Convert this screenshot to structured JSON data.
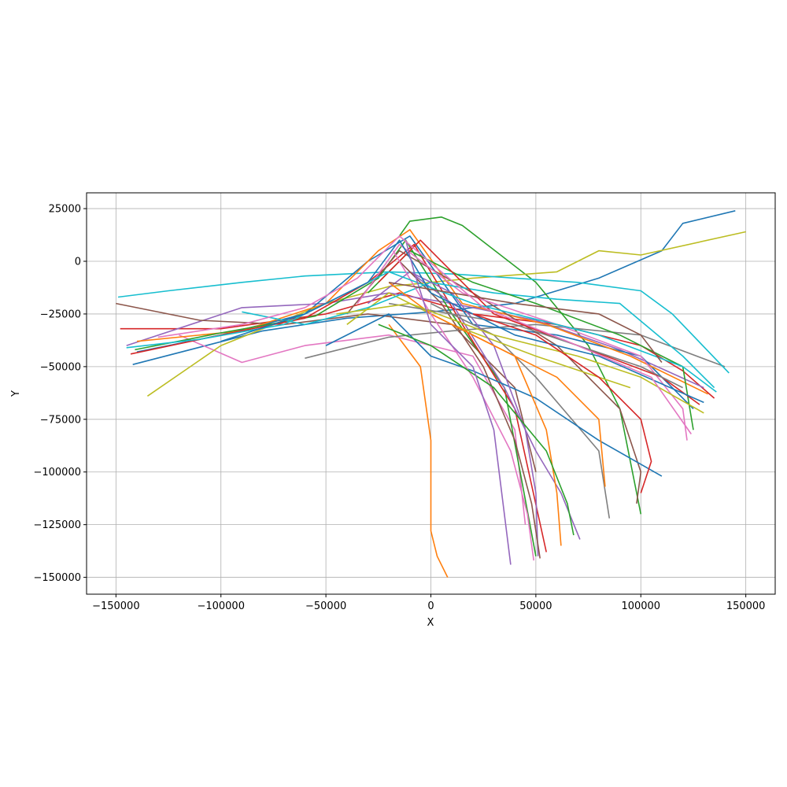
{
  "chart_data": {
    "type": "line",
    "title": "",
    "xlabel": "X",
    "ylabel": "Y",
    "xlim": [
      -164000,
      164000
    ],
    "ylim": [
      -158000,
      32500
    ],
    "grid": true,
    "legend": "none",
    "x_ticks": [
      -150000,
      -100000,
      -50000,
      0,
      50000,
      100000,
      150000
    ],
    "x_tick_labels": [
      "−150000",
      "−100000",
      "−50000",
      "0",
      "50000",
      "100000",
      "150000"
    ],
    "y_ticks": [
      25000,
      0,
      -25000,
      -50000,
      -75000,
      -100000,
      -125000,
      -150000
    ],
    "y_tick_labels": [
      "25000",
      "0",
      "−25000",
      "−50000",
      "−75000",
      "−100000",
      "−125000",
      "−150000"
    ],
    "colors": [
      "#1f77b4",
      "#ff7f0e",
      "#2ca02c",
      "#d62728",
      "#9467bd",
      "#8c564b",
      "#e377c2",
      "#7f7f7f",
      "#bcbd22",
      "#17becf"
    ],
    "series": [
      {
        "x": [
          -142000,
          -80000,
          -40000,
          0,
          40000,
          80000,
          110000,
          120000,
          145000
        ],
        "y": [
          -49000,
          -33000,
          -27000,
          -24000,
          -20000,
          -8000,
          5000,
          18000,
          24000
        ]
      },
      {
        "x": [
          -20000,
          -5000,
          0,
          0,
          3000,
          8000
        ],
        "y": [
          -30000,
          -50000,
          -85000,
          -128000,
          -140000,
          -150000
        ]
      },
      {
        "x": [
          -15000,
          -10000,
          5000,
          15000,
          50000,
          75000,
          90000,
          100000
        ],
        "y": [
          12000,
          19000,
          21000,
          17000,
          -10000,
          -40000,
          -70000,
          -120000
        ]
      },
      {
        "x": [
          -148000,
          -100000,
          -50000,
          -15000,
          20000,
          60000,
          100000,
          120000,
          135000
        ],
        "y": [
          -32000,
          -32000,
          -25000,
          -15000,
          -25000,
          -30000,
          -40000,
          -52000,
          -65000
        ]
      },
      {
        "x": [
          -145000,
          -90000,
          -50000,
          -20000,
          10000,
          50000,
          90000,
          130000
        ],
        "y": [
          -40000,
          -22000,
          -20000,
          -15000,
          -20000,
          -28000,
          -42000,
          -60000
        ]
      },
      {
        "x": [
          -150000,
          -110000,
          -70000,
          -30000,
          10000,
          40000,
          50000
        ],
        "y": [
          -20000,
          -28000,
          -30000,
          -25000,
          -30000,
          -60000,
          -100000
        ]
      },
      {
        "x": [
          -120000,
          -90000,
          -60000,
          -20000,
          20000,
          40000,
          45000
        ],
        "y": [
          -35000,
          -48000,
          -40000,
          -35000,
          -45000,
          -80000,
          -125000
        ]
      },
      {
        "x": [
          -60000,
          -20000,
          10000,
          50000,
          100000,
          140000
        ],
        "y": [
          -46000,
          -36000,
          -33000,
          -30000,
          -35000,
          -50000
        ]
      },
      {
        "x": [
          -135000,
          -100000,
          -50000,
          -20000,
          20000,
          60000,
          80000,
          100000,
          150000
        ],
        "y": [
          -64000,
          -40000,
          -20000,
          -12000,
          -8000,
          -5000,
          5000,
          3000,
          14000
        ]
      },
      {
        "x": [
          -149000,
          -125000,
          -90000,
          -60000,
          -20000,
          10000,
          40000,
          70000,
          100000,
          115000,
          142000
        ],
        "y": [
          -17000,
          -14000,
          -10000,
          -7000,
          -5000,
          -6000,
          -8000,
          -10000,
          -14000,
          -25000,
          -53000
        ]
      },
      {
        "x": [
          -140000,
          -100000,
          -60000,
          -30000,
          -10000,
          20000,
          60000,
          100000,
          125000
        ],
        "y": [
          -43000,
          -35000,
          -25000,
          0,
          12000,
          -30000,
          -35000,
          -45000,
          -70000
        ]
      },
      {
        "x": [
          -140000,
          -90000,
          -50000,
          -25000,
          -10000,
          15000,
          55000,
          95000,
          132000
        ],
        "y": [
          -38000,
          -33000,
          -20000,
          5000,
          15000,
          -20000,
          -30000,
          -45000,
          -63000
        ]
      },
      {
        "x": [
          -141000,
          -100000,
          -55000,
          -25000,
          -12000,
          10000,
          35000,
          50000
        ],
        "y": [
          -42000,
          -34000,
          -26000,
          -8000,
          10000,
          -25000,
          -60000,
          -140000
        ]
      },
      {
        "x": [
          -143000,
          -105000,
          -60000,
          -30000,
          -8000,
          15000,
          40000,
          55000
        ],
        "y": [
          -44000,
          -36000,
          -27000,
          -10000,
          8000,
          -30000,
          -70000,
          -138000
        ]
      },
      {
        "x": [
          -30000,
          -10000,
          10000,
          35000,
          50000,
          62000,
          71000
        ],
        "y": [
          -20000,
          -5000,
          -20000,
          -60000,
          -90000,
          -110000,
          -132000
        ]
      },
      {
        "x": [
          -40000,
          -15000,
          20000,
          60000,
          90000,
          100000,
          98000
        ],
        "y": [
          -25000,
          5000,
          -15000,
          -40000,
          -70000,
          -100000,
          -115000
        ]
      },
      {
        "x": [
          -35000,
          -15000,
          15000,
          60000,
          100000,
          120000,
          122000
        ],
        "y": [
          -20000,
          8000,
          -15000,
          -30000,
          -45000,
          -70000,
          -85000
        ]
      },
      {
        "x": [
          0,
          30000,
          50000,
          80000,
          85000
        ],
        "y": [
          -20000,
          -35000,
          -55000,
          -90000,
          -122000
        ]
      },
      {
        "x": [
          -40000,
          -20000,
          10000,
          50000,
          80000,
          95000
        ],
        "y": [
          -30000,
          -15000,
          -30000,
          -45000,
          -55000,
          -60000
        ]
      },
      {
        "x": [
          -90000,
          -60000,
          -30000,
          0,
          30000,
          60000,
          90000,
          120000,
          135000
        ],
        "y": [
          -24000,
          -30000,
          -22000,
          -10000,
          -15000,
          -18000,
          -20000,
          -45000,
          -60000
        ]
      },
      {
        "x": [
          -50000,
          -20000,
          0,
          20000,
          50000,
          80000,
          110000
        ],
        "y": [
          -40000,
          -25000,
          -45000,
          -52000,
          -65000,
          -85000,
          -102000
        ]
      },
      {
        "x": [
          -20000,
          0,
          30000,
          60000,
          80000,
          83000
        ],
        "y": [
          -10000,
          -25000,
          -40000,
          -55000,
          -75000,
          -107000
        ]
      },
      {
        "x": [
          -30000,
          -10000,
          20000,
          50000,
          90000,
          120000,
          125000
        ],
        "y": [
          -15000,
          5000,
          -10000,
          -20000,
          -35000,
          -50000,
          -80000
        ]
      },
      {
        "x": [
          -25000,
          -5000,
          30000,
          70000,
          110000,
          128000
        ],
        "y": [
          -10000,
          10000,
          -25000,
          -40000,
          -55000,
          -68000
        ]
      },
      {
        "x": [
          -10000,
          10000,
          30000,
          45000,
          50000,
          51000
        ],
        "y": [
          -5000,
          -15000,
          -40000,
          -80000,
          -110000,
          -140000
        ]
      },
      {
        "x": [
          -15000,
          5000,
          25000,
          40000,
          48000,
          52000
        ],
        "y": [
          0,
          -20000,
          -50000,
          -85000,
          -115000,
          -141000
        ]
      },
      {
        "x": [
          -18000,
          0,
          20000,
          38000,
          46000,
          49000
        ],
        "y": [
          5000,
          -25000,
          -55000,
          -90000,
          -120000,
          -142000
        ]
      },
      {
        "x": [
          -20000,
          10000,
          40000,
          70000,
          100000,
          120000
        ],
        "y": [
          -20000,
          -25000,
          -30000,
          -40000,
          -50000,
          -60000
        ]
      },
      {
        "x": [
          -45000,
          -10000,
          30000,
          70000,
          100000,
          130000
        ],
        "y": [
          -25000,
          -20000,
          -35000,
          -45000,
          -55000,
          -72000
        ]
      },
      {
        "x": [
          -145000,
          -110000,
          -70000,
          -40000,
          -20000,
          20000,
          80000,
          120000,
          136000
        ],
        "y": [
          -41000,
          -37000,
          -30000,
          -15000,
          -5000,
          -20000,
          -35000,
          -50000,
          -62000
        ]
      },
      {
        "x": [
          -100000,
          -60000,
          -30000,
          -15000,
          0,
          40000,
          80000,
          130000
        ],
        "y": [
          -38000,
          -25000,
          -10000,
          10000,
          -15000,
          -35000,
          -45000,
          -67000
        ]
      },
      {
        "x": [
          10000,
          40000,
          55000,
          60000,
          62000
        ],
        "y": [
          -30000,
          -45000,
          -80000,
          -110000,
          -135000
        ]
      },
      {
        "x": [
          -25000,
          0,
          30000,
          55000,
          65000,
          68000
        ],
        "y": [
          -30000,
          -40000,
          -60000,
          -90000,
          -115000,
          -130000
        ]
      },
      {
        "x": [
          20000,
          50000,
          80000,
          100000,
          105000,
          100000
        ],
        "y": [
          -25000,
          -35000,
          -55000,
          -75000,
          -95000,
          -110000
        ]
      },
      {
        "x": [
          -12000,
          -8000,
          0,
          20000,
          30000,
          38000
        ],
        "y": [
          10000,
          -5000,
          -30000,
          -50000,
          -80000,
          -144000
        ]
      },
      {
        "x": [
          -20000,
          10000,
          40000,
          80000,
          100000,
          110000
        ],
        "y": [
          -10000,
          -15000,
          -20000,
          -25000,
          -35000,
          -48000
        ]
      },
      {
        "x": [
          -130000,
          -90000,
          -60000,
          -35000,
          -15000,
          25000,
          65000,
          105000,
          124000
        ],
        "y": [
          -36000,
          -30000,
          -22000,
          -8000,
          12000,
          -22000,
          -38000,
          -55000,
          -82000
        ]
      }
    ]
  }
}
